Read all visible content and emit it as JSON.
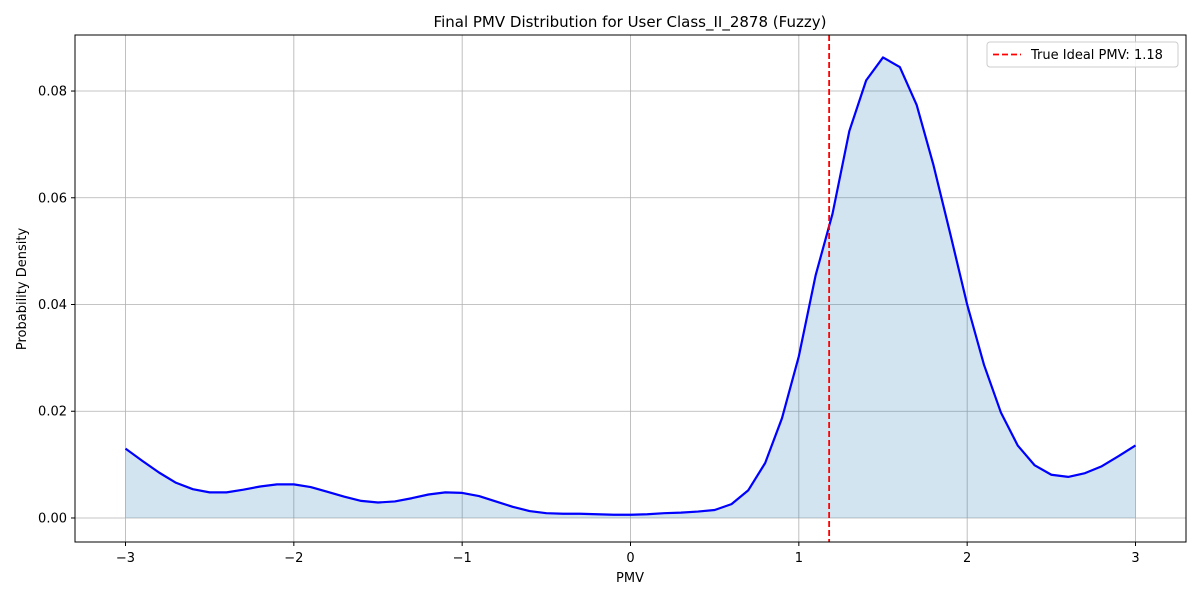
{
  "chart_data": {
    "type": "area",
    "title": "Final PMV Distribution for User Class_II_2878 (Fuzzy)",
    "xlabel": "PMV",
    "ylabel": "Probability Density",
    "xlim": [
      -3.3,
      3.3
    ],
    "ylim": [
      -0.0045,
      0.0905
    ],
    "xticks": [
      -3,
      -2,
      -1,
      0,
      1,
      2,
      3
    ],
    "xtick_labels": [
      "−3",
      "−2",
      "−1",
      "0",
      "1",
      "2",
      "3"
    ],
    "yticks": [
      0.0,
      0.02,
      0.04,
      0.06,
      0.08
    ],
    "ytick_labels": [
      "0.00",
      "0.02",
      "0.04",
      "0.06",
      "0.08"
    ],
    "grid": true,
    "series": [
      {
        "line_color": "#0000ff",
        "fill_color": "#1f77b4",
        "fill_opacity": 0.2,
        "x": [
          -3.0,
          -2.9,
          -2.8,
          -2.7,
          -2.6,
          -2.5,
          -2.4,
          -2.3,
          -2.2,
          -2.1,
          -2.0,
          -1.9,
          -1.8,
          -1.7,
          -1.6,
          -1.5,
          -1.4,
          -1.3,
          -1.2,
          -1.1,
          -1.0,
          -0.9,
          -0.8,
          -0.7,
          -0.6,
          -0.5,
          -0.4,
          -0.3,
          -0.2,
          -0.1,
          0.0,
          0.1,
          0.2,
          0.3,
          0.4,
          0.5,
          0.6,
          0.7,
          0.8,
          0.9,
          1.0,
          1.1,
          1.2,
          1.3,
          1.4,
          1.5,
          1.6,
          1.7,
          1.8,
          1.9,
          2.0,
          2.1,
          2.2,
          2.3,
          2.4,
          2.5,
          2.6,
          2.7,
          2.8,
          2.9,
          3.0
        ],
        "y": [
          0.013,
          0.0107,
          0.0085,
          0.0066,
          0.0054,
          0.0048,
          0.0048,
          0.0053,
          0.0059,
          0.0063,
          0.0063,
          0.0058,
          0.0049,
          0.004,
          0.0032,
          0.0029,
          0.0031,
          0.0037,
          0.0044,
          0.0048,
          0.0047,
          0.0041,
          0.0031,
          0.0021,
          0.0013,
          0.0009,
          0.0008,
          0.0008,
          0.0007,
          0.0006,
          0.0006,
          0.0007,
          0.0009,
          0.001,
          0.0012,
          0.0015,
          0.0026,
          0.0052,
          0.0103,
          0.0187,
          0.0303,
          0.0455,
          0.057,
          0.0725,
          0.082,
          0.0863,
          0.0845,
          0.0774,
          0.0661,
          0.0532,
          0.04,
          0.0287,
          0.0198,
          0.0136,
          0.0099,
          0.0081,
          0.0077,
          0.0084,
          0.0097,
          0.0116,
          0.0136
        ]
      }
    ],
    "reference_line": {
      "x": 1.18,
      "color": "#ff0000",
      "style": "dashed",
      "label": "True Ideal PMV: 1.18"
    },
    "legend_position": "top-right"
  }
}
